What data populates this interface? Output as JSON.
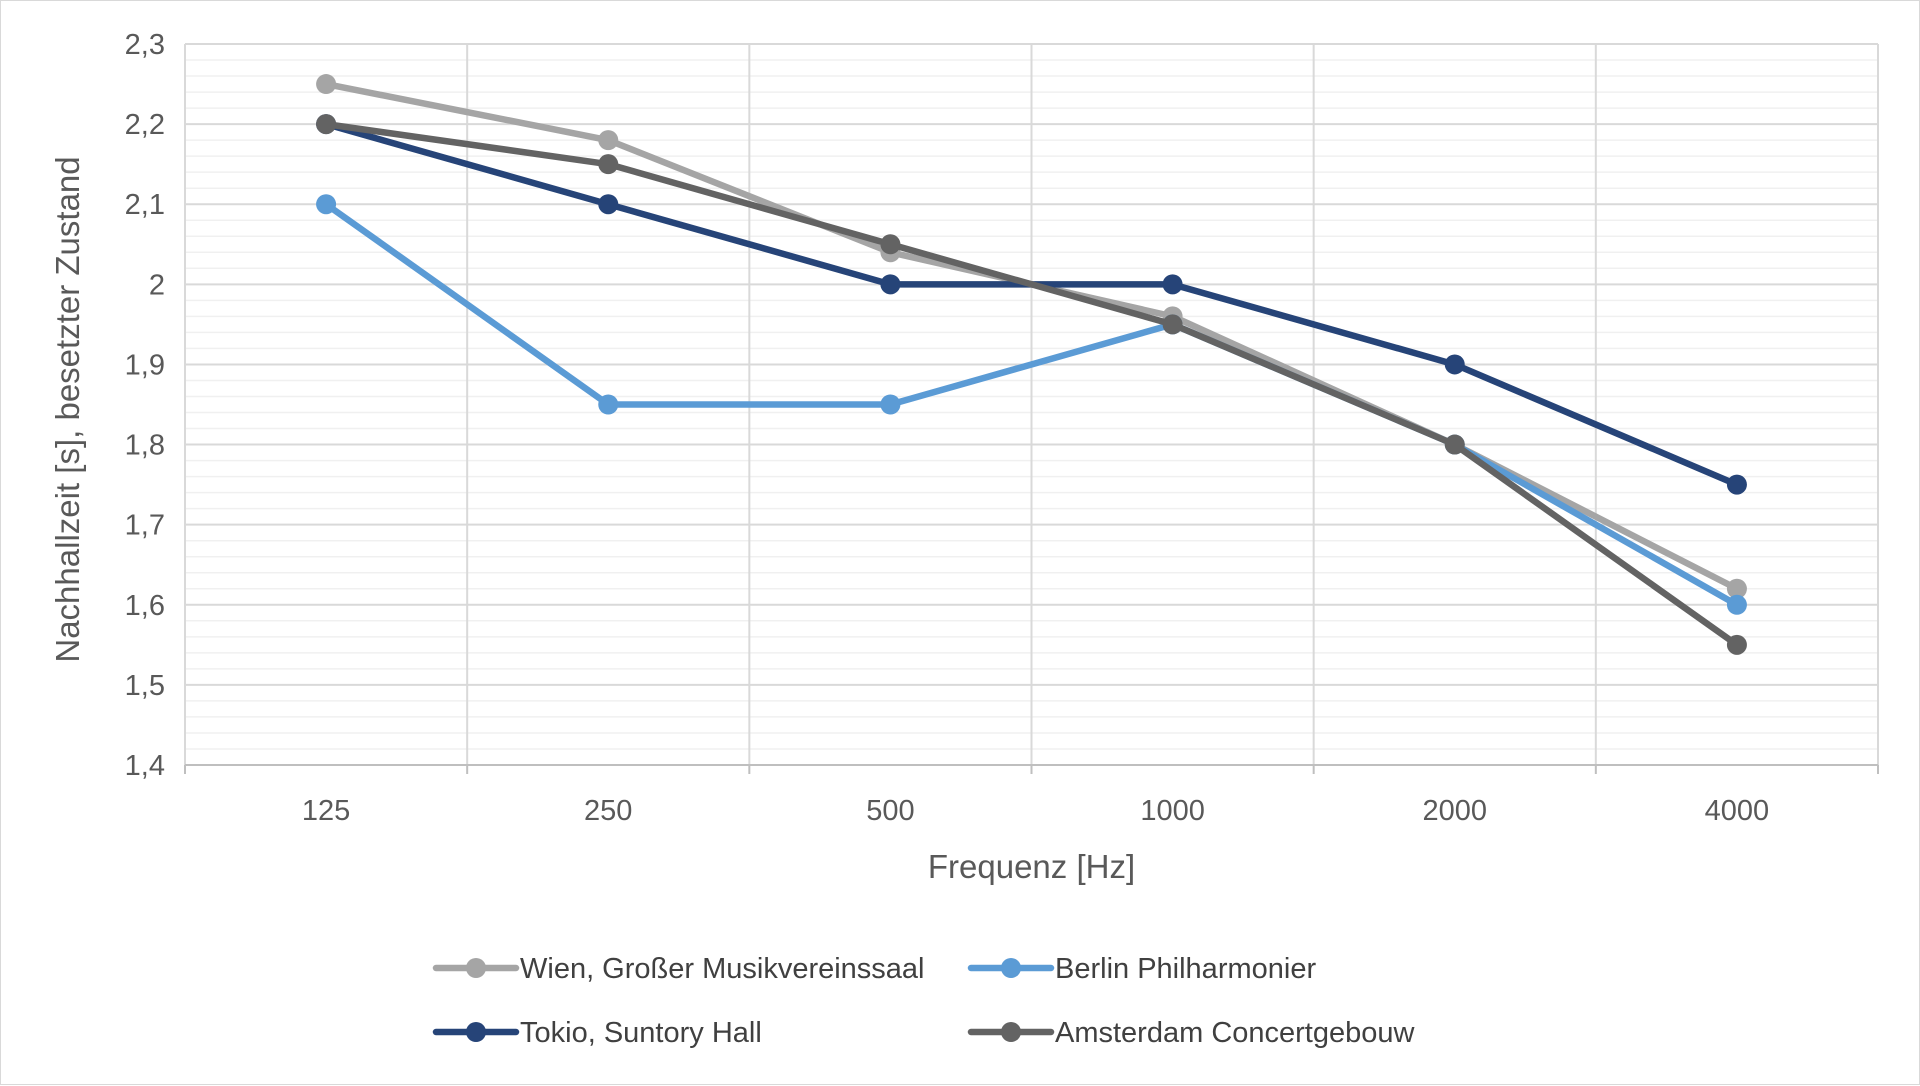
{
  "chart_data": {
    "type": "line",
    "title": "",
    "xlabel": "Frequenz [Hz]",
    "ylabel": "Nachhallzeit [s], besetzter Zustand",
    "categories": [
      "125",
      "250",
      "500",
      "1000",
      "2000",
      "4000"
    ],
    "ylim": [
      1.4,
      2.3
    ],
    "ytick_labels": [
      "1,4",
      "1,5",
      "1,6",
      "1,7",
      "1,8",
      "1,9",
      "2",
      "2,1",
      "2,2",
      "2,3"
    ],
    "grid": true,
    "legend_position": "bottom",
    "series": [
      {
        "name": "Wien, Großer Musikvereinssaal",
        "color": "#a5a5a5",
        "values": [
          2.25,
          2.18,
          2.04,
          1.96,
          1.8,
          1.62
        ]
      },
      {
        "name": "Berlin Philharmonier",
        "color": "#5b9bd5",
        "values": [
          2.1,
          1.85,
          1.85,
          1.95,
          1.8,
          1.6
        ]
      },
      {
        "name": "Tokio, Suntory Hall",
        "color": "#264478",
        "values": [
          2.2,
          2.1,
          2.0,
          2.0,
          1.9,
          1.75
        ]
      },
      {
        "name": "Amsterdam Concertgebouw",
        "color": "#636363",
        "values": [
          2.2,
          2.15,
          2.05,
          1.95,
          1.8,
          1.55
        ]
      }
    ]
  }
}
